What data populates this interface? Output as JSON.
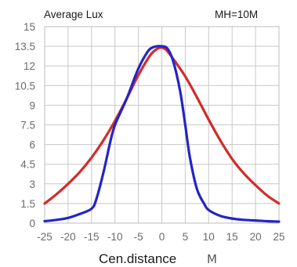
{
  "chart_data": {
    "type": "line",
    "title": "Average Lux",
    "subtitle": "MH=10M",
    "xlabel": "Cen.distance",
    "xunit": "M",
    "ylabel": "",
    "xlim": [
      -25,
      25
    ],
    "ylim": [
      0,
      15
    ],
    "xticks": [
      "-25",
      "-20",
      "-15",
      "-10",
      "-5",
      "0",
      "5",
      "10",
      "15",
      "20",
      "25"
    ],
    "yticks": [
      "0",
      "1.5",
      "3",
      "4.5",
      "6",
      "7.5",
      "9",
      "10.5",
      "12",
      "13.5",
      "15"
    ],
    "grid": true,
    "series": [
      {
        "color": "#d42a2a",
        "x": [
          -25,
          -22.5,
          -20,
          -17.5,
          -15,
          -12.5,
          -10,
          -7.5,
          -5,
          -2.5,
          -1,
          0,
          1,
          2.5,
          5,
          7.5,
          10,
          12.5,
          15,
          17.5,
          20,
          22.5,
          25
        ],
        "y": [
          1.5,
          2.2,
          3.0,
          3.9,
          5.0,
          6.3,
          7.8,
          9.5,
          11.3,
          12.8,
          13.3,
          13.4,
          13.2,
          12.5,
          11.2,
          9.6,
          7.9,
          6.3,
          4.9,
          3.8,
          2.9,
          2.1,
          1.5
        ]
      },
      {
        "color": "#2424c8",
        "x": [
          -25,
          -22.5,
          -20,
          -17.5,
          -15,
          -14,
          -12.5,
          -11,
          -10,
          -7.5,
          -5,
          -3,
          -2,
          -1,
          0,
          1,
          2,
          3,
          4,
          5,
          6,
          7.5,
          9,
          10,
          12.5,
          15,
          17.5,
          20,
          22.5,
          25
        ],
        "y": [
          0.15,
          0.25,
          0.4,
          0.7,
          1.1,
          1.8,
          3.8,
          6.2,
          7.5,
          9.5,
          11.8,
          13.1,
          13.4,
          13.5,
          13.5,
          13.4,
          12.8,
          11.6,
          9.9,
          7.5,
          5.0,
          2.6,
          1.5,
          1.0,
          0.55,
          0.35,
          0.25,
          0.2,
          0.15,
          0.12
        ]
      }
    ]
  }
}
